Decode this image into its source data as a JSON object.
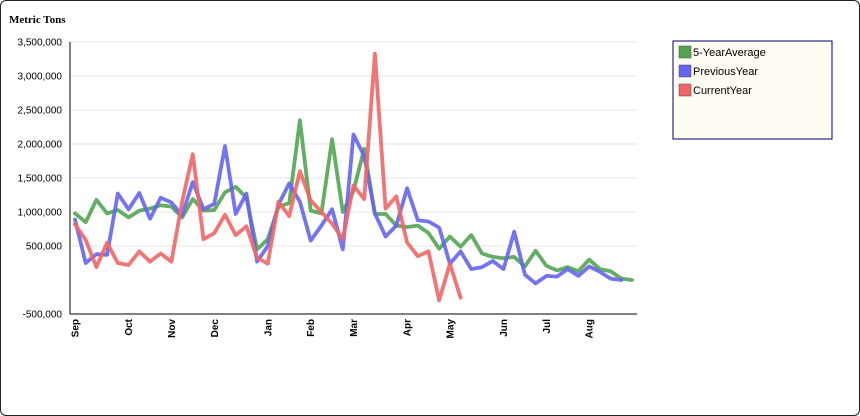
{
  "chart_data": {
    "type": "line",
    "ylabel": "Metric Tons",
    "ylim": [
      -500000,
      3500000
    ],
    "yticks": [
      3500000,
      3000000,
      2500000,
      2000000,
      1500000,
      1000000,
      500000,
      -500000
    ],
    "ytick_labels": [
      "3,500,000",
      "3,000,000",
      "2,500,000",
      "2,000,000",
      "1,500,000",
      "1,000,000",
      "500,000",
      "-500,000"
    ],
    "x_count": 53,
    "month_ticks": [
      {
        "label": "Sep",
        "index": 0
      },
      {
        "label": "Oct",
        "index": 5
      },
      {
        "label": "Nov",
        "index": 9
      },
      {
        "label": "Dec",
        "index": 13
      },
      {
        "label": "Jan",
        "index": 18
      },
      {
        "label": "Feb",
        "index": 22
      },
      {
        "label": "Mar",
        "index": 26
      },
      {
        "label": "Apr",
        "index": 31
      },
      {
        "label": "May",
        "index": 35
      },
      {
        "label": "Jun",
        "index": 40
      },
      {
        "label": "Jul",
        "index": 44
      },
      {
        "label": "Aug",
        "index": 48
      }
    ],
    "grid": true,
    "legend_position": "top-right",
    "series": [
      {
        "name": "5-YearAverage",
        "color": "#52a552",
        "values": [
          980000,
          850000,
          1180000,
          980000,
          1030000,
          920000,
          1020000,
          1050000,
          1100000,
          1080000,
          920000,
          1190000,
          1020000,
          1030000,
          1290000,
          1370000,
          1210000,
          450000,
          600000,
          1080000,
          1130000,
          2350000,
          1020000,
          980000,
          2070000,
          1000000,
          1310000,
          1930000,
          970000,
          970000,
          800000,
          780000,
          800000,
          690000,
          460000,
          640000,
          490000,
          660000,
          390000,
          340000,
          320000,
          340000,
          200000,
          430000,
          210000,
          140000,
          190000,
          130000,
          300000,
          160000,
          130000,
          20000,
          0
        ]
      },
      {
        "name": "PreviousYear",
        "color": "#6565ee",
        "values": [
          890000,
          250000,
          380000,
          370000,
          1270000,
          1040000,
          1280000,
          900000,
          1210000,
          1140000,
          950000,
          1440000,
          1040000,
          1120000,
          1970000,
          970000,
          1270000,
          270000,
          500000,
          1110000,
          1420000,
          1150000,
          580000,
          800000,
          1040000,
          450000,
          2140000,
          1820000,
          980000,
          640000,
          800000,
          1350000,
          880000,
          860000,
          770000,
          240000,
          420000,
          160000,
          190000,
          280000,
          160000,
          710000,
          80000,
          -50000,
          60000,
          50000,
          160000,
          60000,
          200000,
          120000,
          20000,
          0,
          null
        ]
      },
      {
        "name": "CurrentYear",
        "color": "#f06666",
        "values": [
          820000,
          590000,
          190000,
          550000,
          250000,
          220000,
          420000,
          270000,
          390000,
          270000,
          1150000,
          1850000,
          600000,
          690000,
          960000,
          660000,
          790000,
          330000,
          240000,
          1150000,
          940000,
          1600000,
          1170000,
          1000000,
          830000,
          600000,
          1390000,
          1190000,
          3330000,
          1050000,
          1230000,
          550000,
          350000,
          420000,
          -300000,
          240000,
          -260000,
          null,
          null,
          null,
          null,
          null,
          null,
          null,
          null,
          null,
          null,
          null,
          null,
          null,
          null,
          null,
          null
        ]
      }
    ]
  }
}
